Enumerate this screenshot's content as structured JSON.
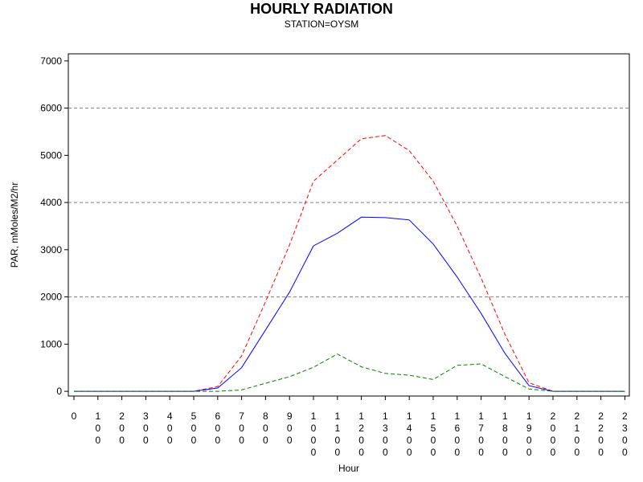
{
  "title": "HOURLY RADIATION",
  "subtitle": "STATION=OYSM",
  "chart_data": {
    "type": "line",
    "title": "HOURLY RADIATION",
    "subtitle": "STATION=OYSM",
    "xlabel": "Hour",
    "ylabel": "PAR, mMoles/M2/hr",
    "x": [
      0,
      100,
      200,
      300,
      400,
      500,
      600,
      700,
      800,
      900,
      1000,
      1100,
      1200,
      1300,
      1400,
      1500,
      1600,
      1700,
      1800,
      1900,
      2000,
      2100,
      2200,
      2300
    ],
    "x_tick_labels": [
      "0",
      "100",
      "200",
      "300",
      "400",
      "500",
      "600",
      "700",
      "800",
      "900",
      "1000",
      "1100",
      "1200",
      "1300",
      "1400",
      "1500",
      "1600",
      "1700",
      "1800",
      "1900",
      "2000",
      "2100",
      "2200",
      "2300"
    ],
    "ylim": [
      -100,
      7150
    ],
    "yticks": [
      0,
      1000,
      2000,
      3000,
      4000,
      5000,
      6000,
      7000
    ],
    "grid_lines": [
      2000,
      4000,
      6000
    ],
    "series": [
      {
        "color": "#ff0000",
        "dash": "dashed",
        "values": [
          0,
          0,
          0,
          0,
          0,
          0,
          100,
          750,
          1900,
          3100,
          4450,
          4900,
          5350,
          5420,
          5100,
          4450,
          3500,
          2400,
          1200,
          180,
          0,
          0,
          0,
          0
        ]
      },
      {
        "color": "#0000ff",
        "dash": "solid",
        "values": [
          0,
          0,
          0,
          0,
          0,
          0,
          70,
          500,
          1300,
          2100,
          3080,
          3350,
          3690,
          3680,
          3630,
          3120,
          2420,
          1650,
          800,
          120,
          0,
          0,
          0,
          0
        ]
      },
      {
        "color": "#008000",
        "dash": "dashed",
        "values": [
          0,
          0,
          0,
          0,
          0,
          0,
          0,
          30,
          170,
          310,
          510,
          790,
          520,
          380,
          340,
          250,
          550,
          580,
          310,
          50,
          0,
          0,
          0,
          0
        ]
      }
    ]
  }
}
